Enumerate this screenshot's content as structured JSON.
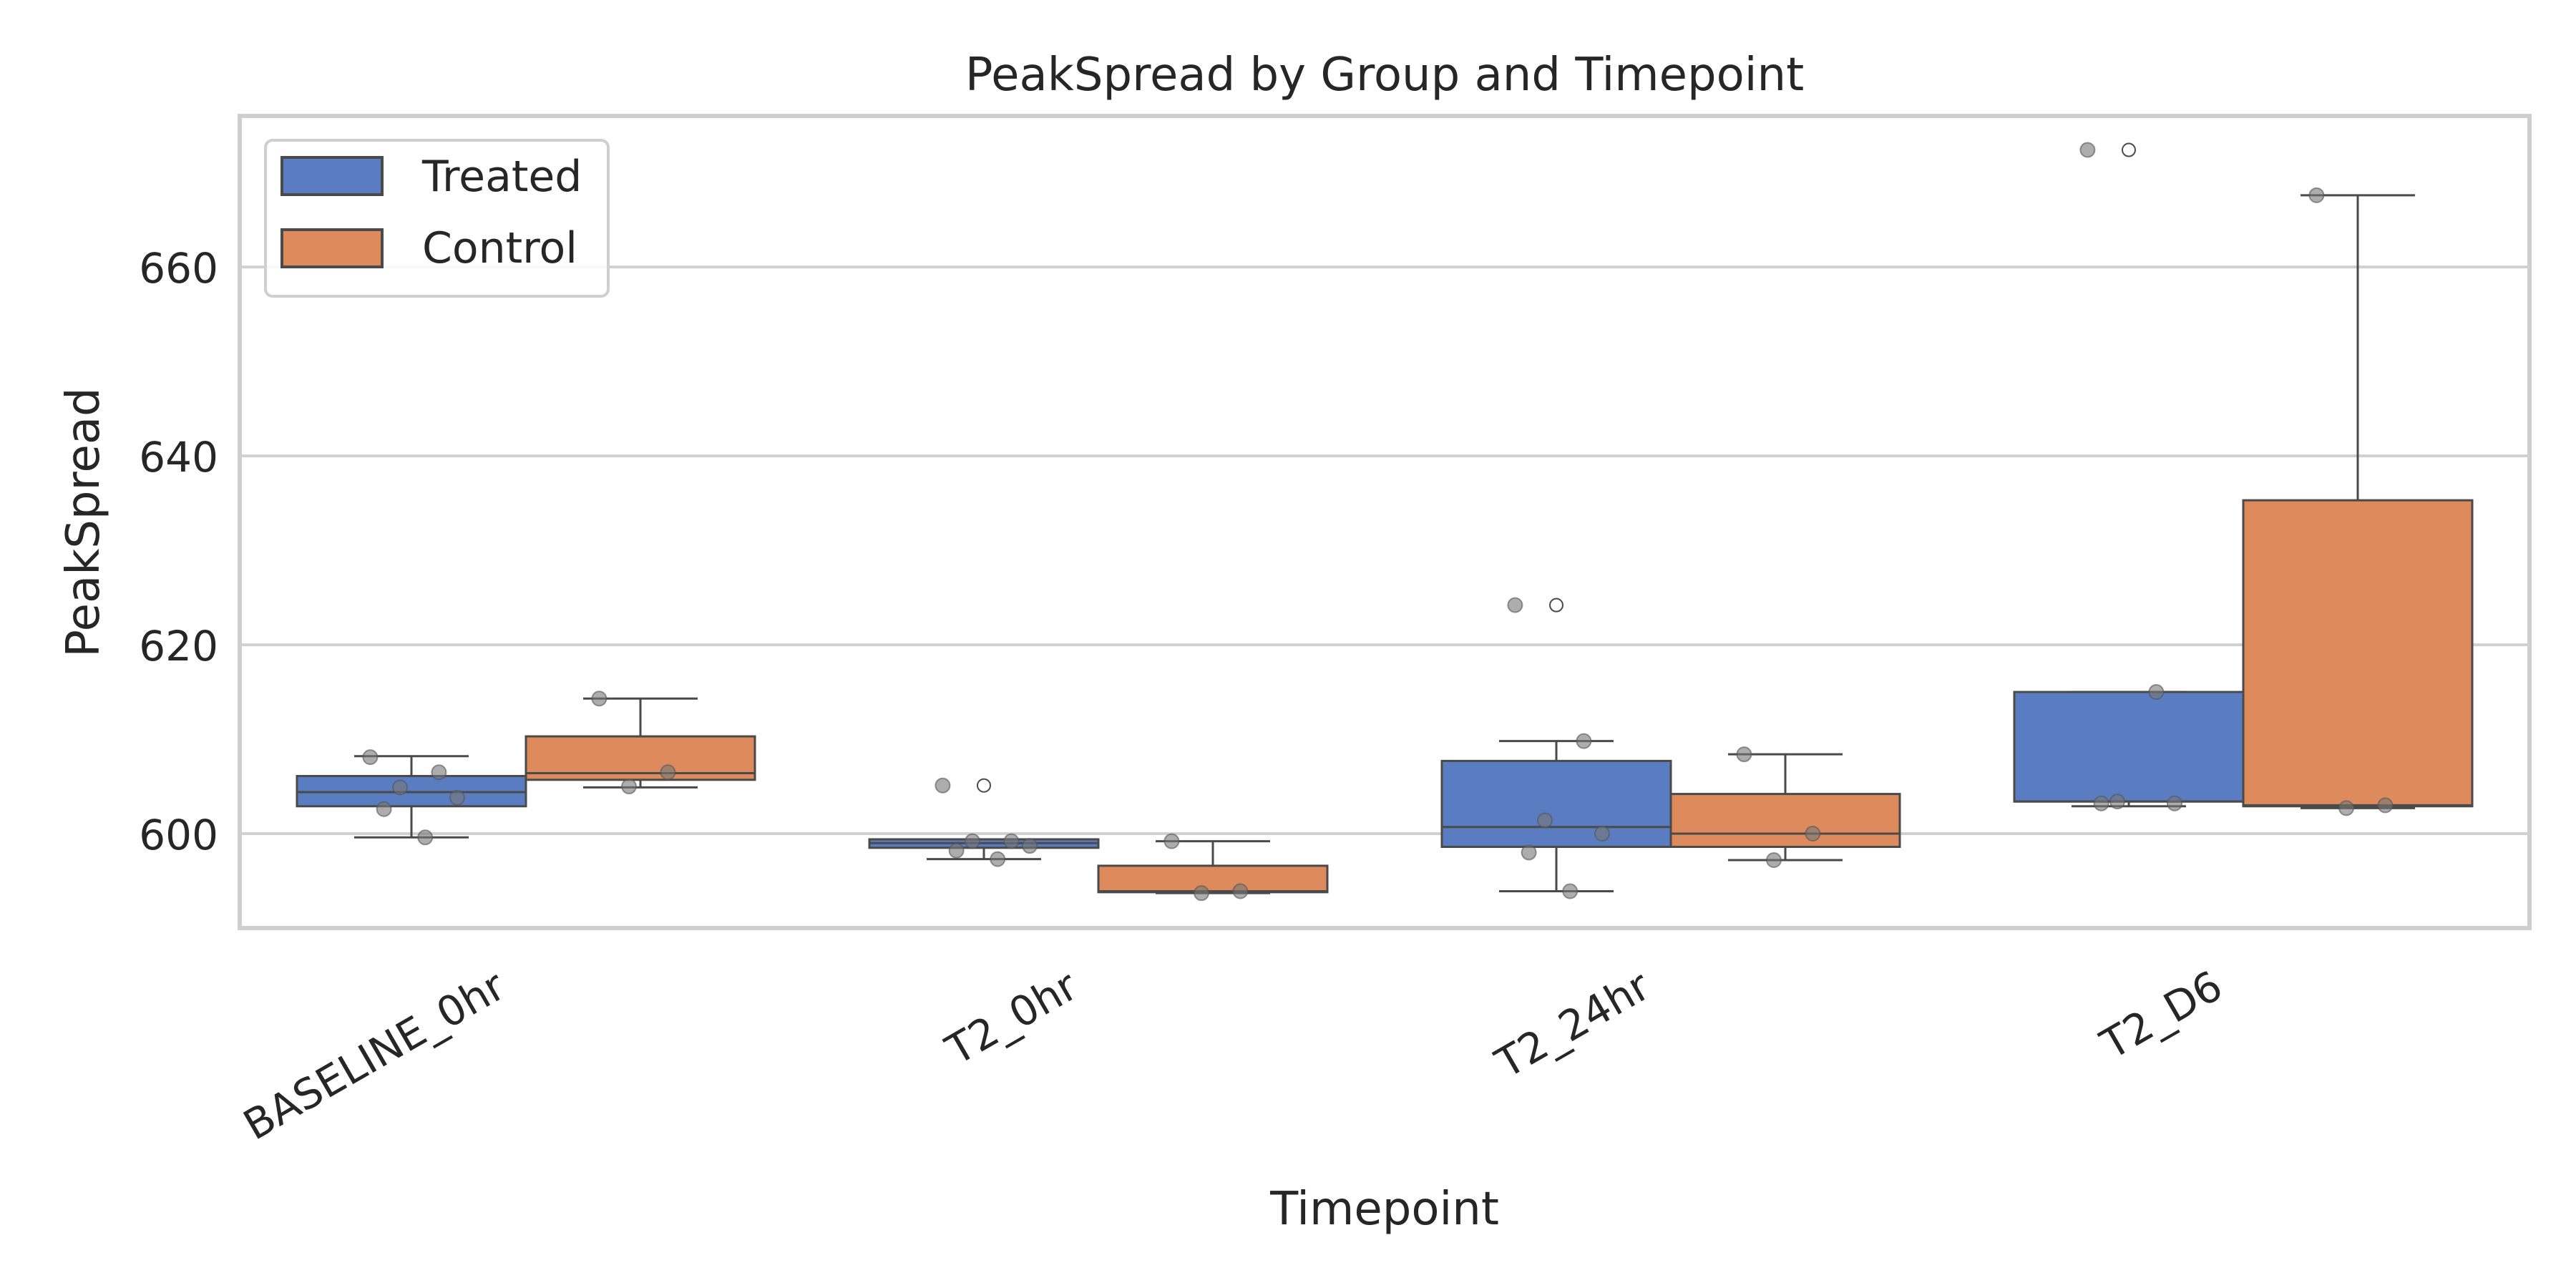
{
  "chart_data": {
    "type": "box",
    "title": "PeakSpread by Group and Timepoint",
    "xlabel": "Timepoint",
    "ylabel": "PeakSpread",
    "categories": [
      "BASELINE_0hr",
      "T2_0hr",
      "T2_24hr",
      "T2_D6"
    ],
    "ylim": [
      590,
      676
    ],
    "yticks": [
      600,
      620,
      640,
      660
    ],
    "grid": true,
    "legend_position": "top-left",
    "series": [
      {
        "name": "Treated",
        "color": "#5a7dc2",
        "boxes": [
          {
            "whisker_low": 599.6,
            "q1": 602.9,
            "median": 604.4,
            "q3": 606.1,
            "whisker_high": 608.2,
            "outliers": []
          },
          {
            "whisker_low": 597.3,
            "q1": 598.5,
            "median": 599.0,
            "q3": 599.4,
            "whisker_high": 599.4,
            "outliers": [
              605.1
            ]
          },
          {
            "whisker_low": 593.9,
            "q1": 598.6,
            "median": 600.7,
            "q3": 607.7,
            "whisker_high": 609.8,
            "outliers": [
              624.2
            ]
          },
          {
            "whisker_low": 602.9,
            "q1": 603.4,
            "median": 603.4,
            "q3": 615.0,
            "whisker_high": 615.0,
            "outliers": [
              672.4
            ]
          }
        ],
        "points": [
          [
            608.1,
            606.5,
            604.9,
            603.8,
            602.6,
            599.6
          ],
          [
            605.1,
            599.2,
            599.2,
            598.7,
            598.2,
            597.3
          ],
          [
            624.2,
            609.8,
            601.4,
            600.0,
            598.0,
            593.9
          ],
          [
            672.4,
            615.0,
            603.4,
            603.2,
            603.2
          ]
        ]
      },
      {
        "name": "Control",
        "color": "#dd8a5c",
        "boxes": [
          {
            "whisker_low": 604.9,
            "q1": 605.7,
            "median": 606.4,
            "q3": 610.3,
            "whisker_high": 614.3,
            "outliers": []
          },
          {
            "whisker_low": 593.7,
            "q1": 593.8,
            "median": 593.9,
            "q3": 596.6,
            "whisker_high": 599.2,
            "outliers": []
          },
          {
            "whisker_low": 597.2,
            "q1": 598.6,
            "median": 600.0,
            "q3": 604.2,
            "whisker_high": 608.4,
            "outliers": []
          },
          {
            "whisker_low": 602.7,
            "q1": 602.9,
            "median": 603.0,
            "q3": 635.3,
            "whisker_high": 667.6,
            "outliers": []
          }
        ],
        "points": [
          [
            614.3,
            606.5,
            605.0
          ],
          [
            599.2,
            593.9,
            593.7
          ],
          [
            608.4,
            600.0,
            597.2
          ],
          [
            667.6,
            603.0,
            602.7
          ]
        ]
      }
    ]
  }
}
